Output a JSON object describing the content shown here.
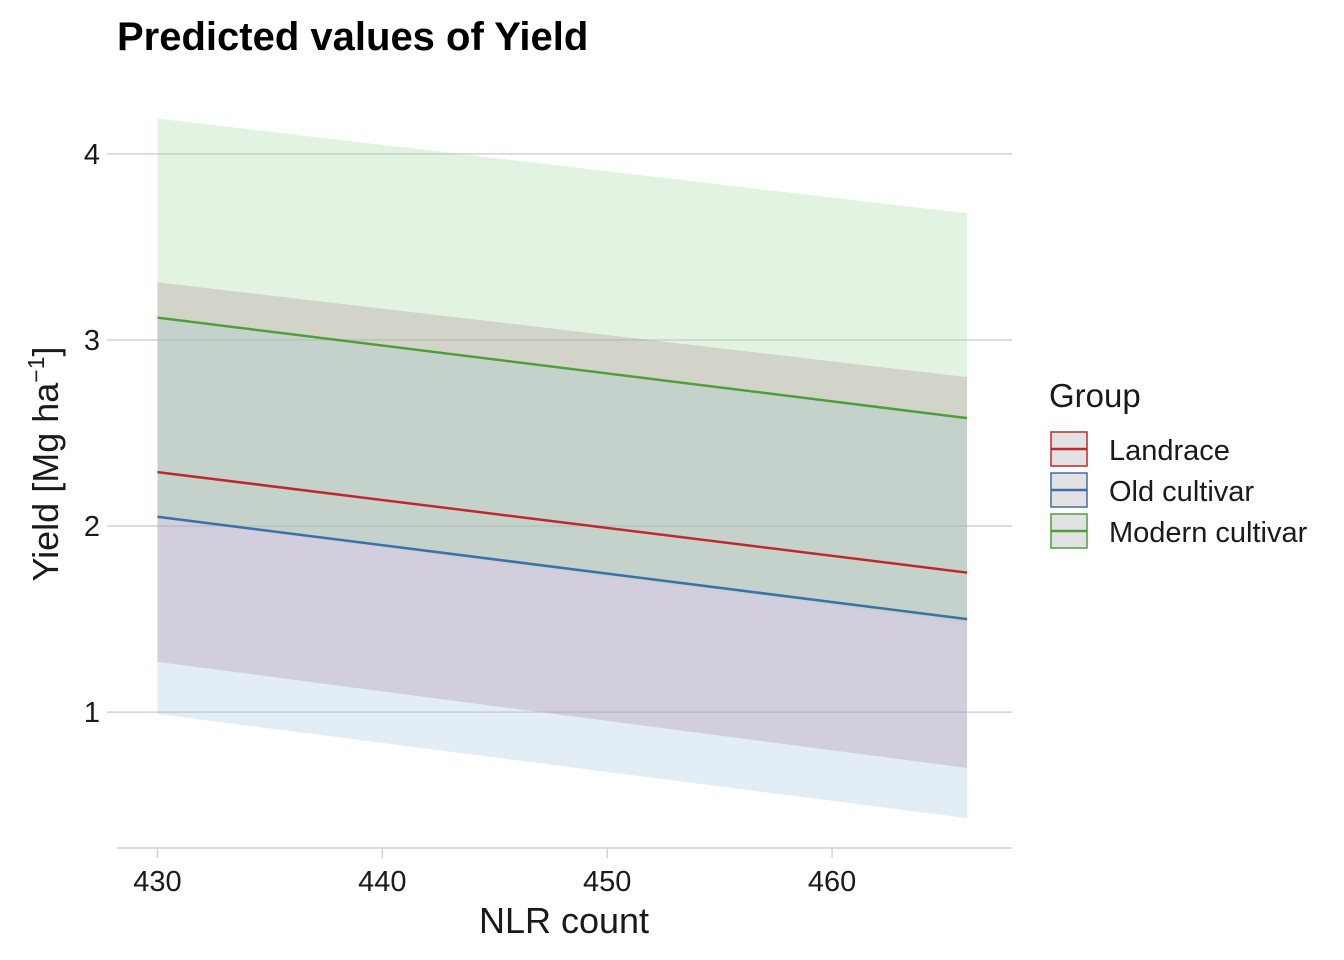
{
  "chart_data": {
    "type": "line",
    "title": "Predicted values of Yield",
    "xlabel": "NLR count",
    "ylabel": "Yield [Mg ha⁻¹]",
    "ylabel_parts": {
      "main": "Yield [Mg ha",
      "sup": "−1",
      "close": "]"
    },
    "xlim": [
      428.2,
      468.0
    ],
    "ylim": [
      0.27,
      4.37
    ],
    "xticks": [
      430,
      440,
      450,
      460
    ],
    "yticks": [
      1,
      2,
      3,
      4
    ],
    "grid": "horizontal",
    "legend": {
      "title": "Group",
      "position": "right"
    },
    "series": [
      {
        "name": "Landrace",
        "color": "#c1272d",
        "fill": "#b07090",
        "x": [
          430,
          466
        ],
        "y": [
          2.29,
          1.75
        ],
        "lower": [
          1.27,
          0.7
        ],
        "upper": [
          3.31,
          2.8
        ]
      },
      {
        "name": "Old cultivar",
        "color": "#3d6fa8",
        "fill": "#a9c6e3",
        "x": [
          430,
          466
        ],
        "y": [
          2.05,
          1.5
        ],
        "lower": [
          0.99,
          0.43
        ],
        "upper": [
          3.11,
          2.57
        ]
      },
      {
        "name": "Modern cultivar",
        "color": "#4f9e3e",
        "fill": "#a9d9a5",
        "x": [
          430,
          466
        ],
        "y": [
          3.12,
          2.58
        ],
        "lower": [
          2.04,
          1.48
        ],
        "upper": [
          4.19,
          3.68
        ]
      }
    ]
  }
}
